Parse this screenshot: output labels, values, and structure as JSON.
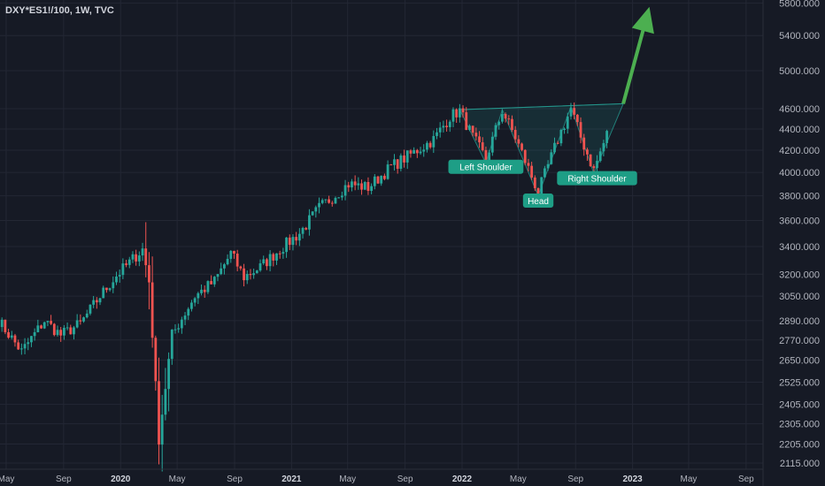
{
  "symbol_label": "DXY*ES1!/100, 1W, TVC",
  "colors": {
    "background": "#161a25",
    "grid": "#232734",
    "axis_text": "#b2b5be",
    "up_candle": "#26a69a",
    "down_candle": "#ef5350",
    "pattern_label_bg": "#1e9e86",
    "pattern_fill": "#26a69a",
    "arrow": "#4caf50"
  },
  "chart_data": {
    "type": "candlestick",
    "title": "DXY*ES1!/100, 1W, TVC",
    "y_scale": "log",
    "y_ticks": [
      "5800.000",
      "5400.000",
      "5000.000",
      "4600.000",
      "4400.000",
      "4200.000",
      "4000.000",
      "3800.000",
      "3600.000",
      "3400.000",
      "3200.000",
      "3050.000",
      "2890.000",
      "2770.000",
      "2650.000",
      "2525.000",
      "2405.000",
      "2305.000",
      "2205.000",
      "2115.000"
    ],
    "x_ticks": [
      {
        "label": "May",
        "date": "2019-05-01",
        "bold": false
      },
      {
        "label": "Sep",
        "date": "2019-09-01",
        "bold": false
      },
      {
        "label": "2020",
        "date": "2020-01-01",
        "bold": true
      },
      {
        "label": "May",
        "date": "2020-05-01",
        "bold": false
      },
      {
        "label": "Sep",
        "date": "2020-09-01",
        "bold": false
      },
      {
        "label": "2021",
        "date": "2021-01-01",
        "bold": true
      },
      {
        "label": "May",
        "date": "2021-05-01",
        "bold": false
      },
      {
        "label": "Sep",
        "date": "2021-09-01",
        "bold": false
      },
      {
        "label": "2022",
        "date": "2022-01-01",
        "bold": true
      },
      {
        "label": "May",
        "date": "2022-05-01",
        "bold": false
      },
      {
        "label": "Sep",
        "date": "2022-09-01",
        "bold": false
      },
      {
        "label": "2023",
        "date": "2023-01-01",
        "bold": true
      },
      {
        "label": "May",
        "date": "2023-05-01",
        "bold": false
      },
      {
        "label": "Sep",
        "date": "2023-09-01",
        "bold": false
      }
    ],
    "anchors": [
      {
        "date": "2019-04-15",
        "price": 2890
      },
      {
        "date": "2019-06-03",
        "price": 2700
      },
      {
        "date": "2019-07-22",
        "price": 2890
      },
      {
        "date": "2019-08-26",
        "price": 2800
      },
      {
        "date": "2019-10-07",
        "price": 2870
      },
      {
        "date": "2019-11-18",
        "price": 3050
      },
      {
        "date": "2019-12-23",
        "price": 3190
      },
      {
        "date": "2020-02-17",
        "price": 3380
      },
      {
        "date": "2020-03-02",
        "price": 3150
      },
      {
        "date": "2020-03-23",
        "price": 2230
      },
      {
        "date": "2020-04-20",
        "price": 2800
      },
      {
        "date": "2020-06-08",
        "price": 3050
      },
      {
        "date": "2020-07-20",
        "price": 3150
      },
      {
        "date": "2020-08-24",
        "price": 3350
      },
      {
        "date": "2020-09-21",
        "price": 3180
      },
      {
        "date": "2020-10-26",
        "price": 3250
      },
      {
        "date": "2020-12-07",
        "price": 3380
      },
      {
        "date": "2021-01-18",
        "price": 3500
      },
      {
        "date": "2021-03-01",
        "price": 3700
      },
      {
        "date": "2021-05-03",
        "price": 3900
      },
      {
        "date": "2021-06-14",
        "price": 3870
      },
      {
        "date": "2021-08-02",
        "price": 4050
      },
      {
        "date": "2021-09-20",
        "price": 4180
      },
      {
        "date": "2021-11-01",
        "price": 4300
      },
      {
        "date": "2021-12-06",
        "price": 4520
      },
      {
        "date": "2021-12-27",
        "price": 4580
      },
      {
        "date": "2022-01-24",
        "price": 4320
      },
      {
        "date": "2022-02-21",
        "price": 4120
      },
      {
        "date": "2022-03-28",
        "price": 4580
      },
      {
        "date": "2022-04-25",
        "price": 4320
      },
      {
        "date": "2022-06-13",
        "price": 3830
      },
      {
        "date": "2022-07-25",
        "price": 4300
      },
      {
        "date": "2022-08-22",
        "price": 4600
      },
      {
        "date": "2022-09-12",
        "price": 4320
      },
      {
        "date": "2022-10-10",
        "price": 4020
      },
      {
        "date": "2022-11-07",
        "price": 4350
      }
    ],
    "annotations": [
      {
        "text": "Left Shoulder",
        "date": "2022-02-21",
        "price": 4050
      },
      {
        "text": "Head",
        "date": "2022-06-13",
        "price": 3760
      },
      {
        "text": "Right Shoulder",
        "date": "2022-10-17",
        "price": 3950
      }
    ],
    "pattern_polygon": [
      {
        "date": "2021-12-27",
        "price": 4590
      },
      {
        "date": "2022-02-21",
        "price": 4080
      },
      {
        "date": "2022-03-28",
        "price": 4590
      },
      {
        "date": "2022-06-13",
        "price": 3800
      },
      {
        "date": "2022-08-22",
        "price": 4620
      },
      {
        "date": "2022-10-10",
        "price": 3990
      },
      {
        "date": "2022-12-12",
        "price": 4650
      }
    ],
    "projection_arrow": {
      "from": {
        "date": "2022-12-12",
        "price": 4650
      },
      "to": {
        "date": "2023-02-06",
        "price": 5750
      }
    }
  }
}
